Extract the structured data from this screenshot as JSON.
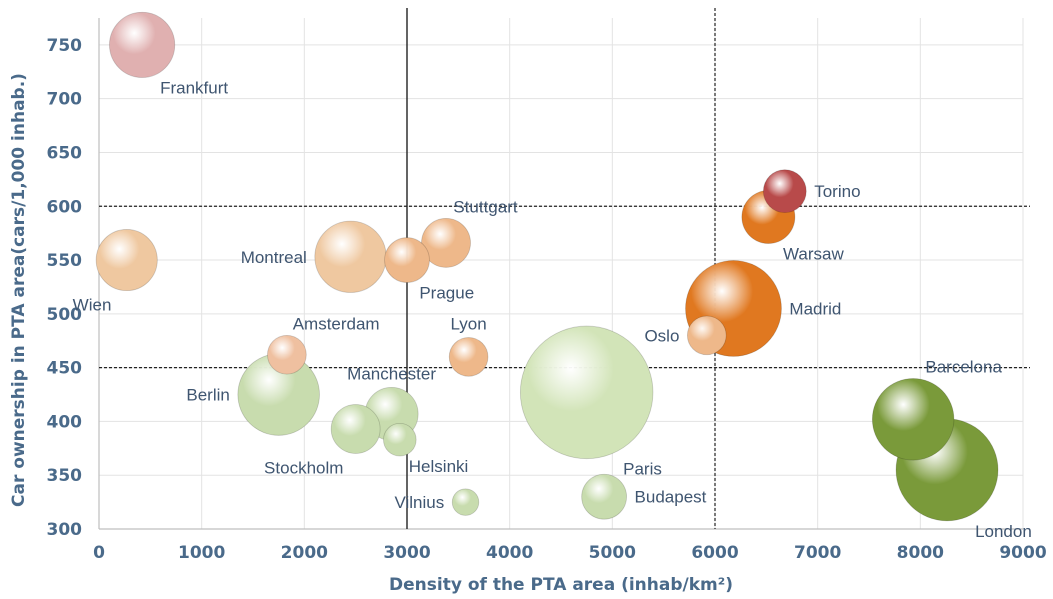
{
  "chart_data": {
    "type": "scatter",
    "subtype": "bubble",
    "title": "",
    "xlabel": "Density of the PTA area (inhab/km²)",
    "ylabel": "Car ownership  in PTA  area(cars/1,000 inhab.)",
    "xlim": [
      0,
      9000
    ],
    "ylim": [
      300,
      775
    ],
    "x_ticks": [
      0,
      1000,
      2000,
      3000,
      4000,
      5000,
      6000,
      7000,
      8000,
      9000
    ],
    "y_ticks": [
      300,
      350,
      400,
      450,
      500,
      550,
      600,
      650,
      700,
      750
    ],
    "grid": true,
    "legend": "none",
    "reference_lines": {
      "vertical": [
        {
          "x": 3000,
          "style": "solid"
        },
        {
          "x": 6000,
          "style": "dashed"
        }
      ],
      "horizontal": [
        {
          "y": 600,
          "style": "dashed"
        },
        {
          "y": 450,
          "style": "dashed"
        }
      ]
    },
    "points": [
      {
        "label": "Frankfurt",
        "x": 420,
        "y": 750,
        "size": 3.2,
        "color": "#e0b0b0",
        "label_pos": "below-right"
      },
      {
        "label": "Wien",
        "x": 270,
        "y": 550,
        "size": 3.0,
        "color": "#efc8a0",
        "label_pos": "below-left"
      },
      {
        "label": "Montreal",
        "x": 2450,
        "y": 553,
        "size": 3.5,
        "color": "#efc8a0",
        "label_pos": "left"
      },
      {
        "label": "Prague",
        "x": 3000,
        "y": 550,
        "size": 2.2,
        "color": "#eeb88a",
        "label_pos": "below-right"
      },
      {
        "label": "Stuttgart",
        "x": 3380,
        "y": 566,
        "size": 2.4,
        "color": "#eeb88a",
        "label_pos": "above-right"
      },
      {
        "label": "Amsterdam",
        "x": 1830,
        "y": 462,
        "size": 1.9,
        "color": "#efc0a0",
        "label_pos": "above-right"
      },
      {
        "label": "Lyon",
        "x": 3600,
        "y": 460,
        "size": 1.9,
        "color": "#eeb88a",
        "label_pos": "above"
      },
      {
        "label": "Berlin",
        "x": 1750,
        "y": 425,
        "size": 4.0,
        "color": "#c8dcae",
        "label_pos": "left"
      },
      {
        "label": "Manchester",
        "x": 2850,
        "y": 407,
        "size": 2.6,
        "color": "#c8dcae",
        "label_pos": "above"
      },
      {
        "label": "Stockholm",
        "x": 2500,
        "y": 393,
        "size": 2.4,
        "color": "#c8dcae",
        "label_pos": "below-left"
      },
      {
        "label": "Helsinki",
        "x": 2930,
        "y": 383,
        "size": 1.6,
        "color": "#c8dcae",
        "label_pos": "below-right"
      },
      {
        "label": "Vilnius",
        "x": 3570,
        "y": 325,
        "size": 1.3,
        "color": "#c8dcae",
        "label_pos": "left"
      },
      {
        "label": "Paris",
        "x": 4750,
        "y": 427,
        "size": 6.5,
        "color": "#d2e4b8",
        "label_pos": "below-right"
      },
      {
        "label": "Budapest",
        "x": 4920,
        "y": 330,
        "size": 2.2,
        "color": "#c8dcae",
        "label_pos": "right"
      },
      {
        "label": "Oslo",
        "x": 5920,
        "y": 480,
        "size": 1.9,
        "color": "#eeb88a",
        "label_pos": "left"
      },
      {
        "label": "Madrid",
        "x": 6180,
        "y": 505,
        "size": 4.7,
        "color": "#e07820",
        "label_pos": "right"
      },
      {
        "label": "Torino",
        "x": 6680,
        "y": 614,
        "size": 2.1,
        "color": "#b84a4a",
        "label_pos": "right"
      },
      {
        "label": "Warsaw",
        "x": 6520,
        "y": 590,
        "size": 2.6,
        "color": "#e07820",
        "label_pos": "below-right"
      },
      {
        "label": "Barcelona",
        "x": 7930,
        "y": 402,
        "size": 4.0,
        "color": "#7a9a3a",
        "label_pos": "above-right"
      },
      {
        "label": "London",
        "x": 8260,
        "y": 355,
        "size": 5.0,
        "color": "#7a9a3a",
        "label_pos": "below-right"
      }
    ]
  }
}
